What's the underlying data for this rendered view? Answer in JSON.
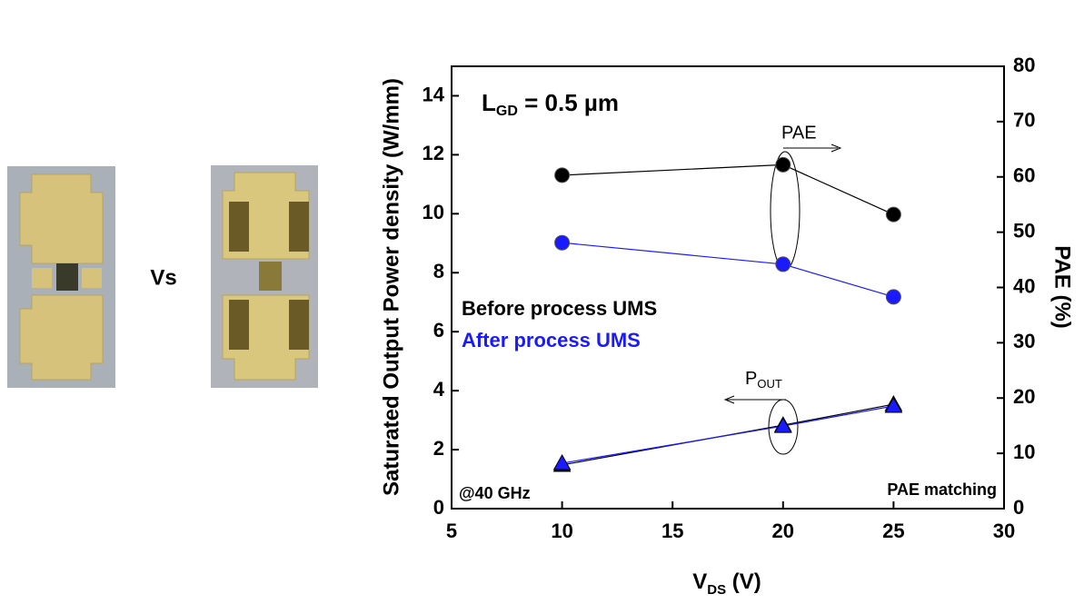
{
  "chart_data": {
    "type": "line",
    "xlabel": {
      "main": "V",
      "sub": "DS",
      "unit": " (V)"
    },
    "ylabel": "Saturated Output Power density (W/mm)",
    "y2label": "PAE (%)",
    "xlim": [
      5,
      30
    ],
    "xticks": [
      5,
      10,
      15,
      20,
      25,
      30
    ],
    "ylim": [
      0,
      15
    ],
    "yticks": [
      0,
      2,
      4,
      6,
      8,
      10,
      12,
      14
    ],
    "y2lim": [
      0,
      80
    ],
    "y2ticks": [
      0,
      10,
      20,
      30,
      40,
      50,
      60,
      70,
      80
    ],
    "x": [
      10,
      20,
      25
    ],
    "series": [
      {
        "name": "Before process UMS",
        "color": "#000000",
        "axis": "y2",
        "values": [
          60.3,
          62.2,
          53.2
        ]
      },
      {
        "name": "After process UMS",
        "color": "#1a1aff",
        "axis": "y2",
        "values": [
          48.1,
          44.2,
          38.3
        ]
      }
    ],
    "pout_series": [
      {
        "color": "#000000",
        "values": [
          1.48,
          2.83,
          3.54
        ]
      },
      {
        "color": "#1a1aff",
        "values": [
          1.54,
          2.8,
          3.48
        ]
      }
    ],
    "annotations": {
      "lgd_main": "L",
      "lgd_sub": "GD",
      "lgd_rest": " = 0.5 µm",
      "pae": "PAE",
      "pout_main": "P",
      "pout_sub": "OUT",
      "freq": "@40 GHz",
      "matching": "PAE matching"
    },
    "comparison": "Vs"
  }
}
